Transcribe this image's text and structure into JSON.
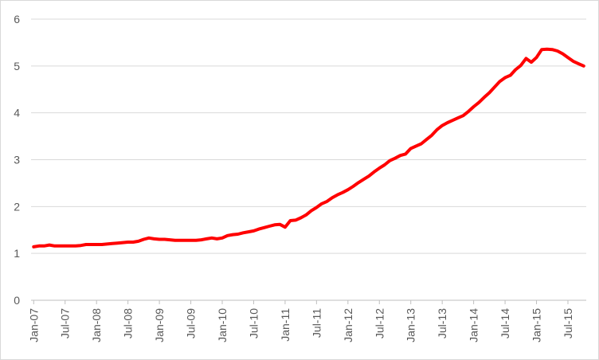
{
  "chart_data": {
    "type": "line",
    "title": "",
    "xlabel": "",
    "ylabel": "",
    "ylim": [
      0,
      6
    ],
    "yticks": [
      0,
      1,
      2,
      3,
      4,
      5,
      6
    ],
    "grid": "horizontal",
    "legend": "none",
    "color": "#ff0000",
    "xticks": [
      "Jan-07",
      "Jul-07",
      "Jan-08",
      "Jul-08",
      "Jan-09",
      "Jul-09",
      "Jan-10",
      "Jul-10",
      "Jan-11",
      "Jul-11",
      "Jan-12",
      "Jul-12",
      "Jan-13",
      "Jul-13",
      "Jan-14",
      "Jul-14",
      "Jan-15",
      "Jul-15"
    ],
    "series": [
      {
        "x": [
          "2007-01",
          "2007-02",
          "2007-03",
          "2007-04",
          "2007-05",
          "2007-06",
          "2007-07",
          "2007-08",
          "2007-09",
          "2007-10",
          "2007-11",
          "2007-12",
          "2008-01",
          "2008-02",
          "2008-03",
          "2008-04",
          "2008-05",
          "2008-06",
          "2008-07",
          "2008-08",
          "2008-09",
          "2008-10",
          "2008-11",
          "2008-12",
          "2009-01",
          "2009-02",
          "2009-03",
          "2009-04",
          "2009-05",
          "2009-06",
          "2009-07",
          "2009-08",
          "2009-09",
          "2009-10",
          "2009-11",
          "2009-12",
          "2010-01",
          "2010-02",
          "2010-03",
          "2010-04",
          "2010-05",
          "2010-06",
          "2010-07",
          "2010-08",
          "2010-09",
          "2010-10",
          "2010-11",
          "2010-12",
          "2011-01",
          "2011-02",
          "2011-03",
          "2011-04",
          "2011-05",
          "2011-06",
          "2011-07",
          "2011-08",
          "2011-09",
          "2011-10",
          "2011-11",
          "2011-12",
          "2012-01",
          "2012-02",
          "2012-03",
          "2012-04",
          "2012-05",
          "2012-06",
          "2012-07",
          "2012-08",
          "2012-09",
          "2012-10",
          "2012-11",
          "2012-12",
          "2013-01",
          "2013-02",
          "2013-03",
          "2013-04",
          "2013-05",
          "2013-06",
          "2013-07",
          "2013-08",
          "2013-09",
          "2013-10",
          "2013-11",
          "2013-12",
          "2014-01",
          "2014-02",
          "2014-03",
          "2014-04",
          "2014-05",
          "2014-06",
          "2014-07",
          "2014-08",
          "2014-09",
          "2014-10",
          "2014-11",
          "2014-12",
          "2015-01",
          "2015-02",
          "2015-03",
          "2015-04",
          "2015-05",
          "2015-06",
          "2015-07",
          "2015-08",
          "2015-09",
          "2015-10"
        ],
        "values": [
          1.14,
          1.16,
          1.16,
          1.18,
          1.16,
          1.16,
          1.16,
          1.16,
          1.16,
          1.17,
          1.19,
          1.19,
          1.19,
          1.19,
          1.2,
          1.21,
          1.22,
          1.23,
          1.24,
          1.24,
          1.26,
          1.3,
          1.33,
          1.31,
          1.3,
          1.3,
          1.29,
          1.28,
          1.28,
          1.28,
          1.28,
          1.28,
          1.29,
          1.31,
          1.33,
          1.31,
          1.33,
          1.38,
          1.4,
          1.41,
          1.44,
          1.46,
          1.48,
          1.52,
          1.55,
          1.58,
          1.61,
          1.62,
          1.56,
          1.7,
          1.71,
          1.76,
          1.82,
          1.91,
          1.98,
          2.06,
          2.11,
          2.19,
          2.25,
          2.3,
          2.36,
          2.43,
          2.51,
          2.58,
          2.65,
          2.74,
          2.82,
          2.89,
          2.98,
          3.03,
          3.09,
          3.12,
          3.24,
          3.29,
          3.34,
          3.43,
          3.52,
          3.64,
          3.73,
          3.79,
          3.84,
          3.89,
          3.94,
          4.03,
          4.13,
          4.22,
          4.33,
          4.43,
          4.55,
          4.67,
          4.75,
          4.8,
          4.92,
          5.01,
          5.16,
          5.08,
          5.18,
          5.35,
          5.36,
          5.35,
          5.32,
          5.26,
          5.18,
          5.1,
          5.05,
          5.0
        ]
      }
    ]
  }
}
